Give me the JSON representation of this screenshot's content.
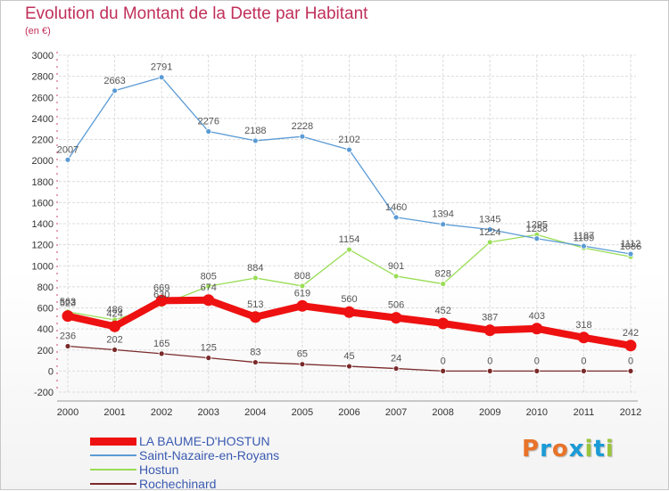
{
  "title": "Evolution du Montant de la Dette par Habitant",
  "subtitle": "(en €)",
  "brand": {
    "letters": [
      "P",
      "r",
      "o",
      "x",
      "i",
      "t",
      "i"
    ],
    "colors": [
      "#e8732a",
      "#1a9bd7",
      "#e8732a",
      "#1a9bd7",
      "#9bc43c",
      "#1a9bd7",
      "#9bc43c"
    ]
  },
  "chart_data": {
    "type": "line",
    "x": [
      "2000",
      "2001",
      "2002",
      "2003",
      "2004",
      "2005",
      "2006",
      "2007",
      "2008",
      "2009",
      "2010",
      "2011",
      "2012"
    ],
    "yticks": [
      "-200",
      "0",
      "200",
      "400",
      "600",
      "800",
      "1000",
      "1200",
      "1400",
      "1600",
      "1800",
      "2000",
      "2200",
      "2400",
      "2600",
      "2800",
      "3000"
    ],
    "ylim": [
      -200,
      3000
    ],
    "grid": true,
    "legend_placement": "bottom-left",
    "series": [
      {
        "name": "LA BAUME-D'HOSTUN",
        "color": "#ee1111",
        "values": [
          523,
          424,
          669,
          674,
          513,
          619,
          560,
          506,
          452,
          387,
          403,
          318,
          242
        ],
        "labels": [
          "523",
          "424",
          "669",
          "674",
          "513",
          "619",
          "560",
          "506",
          "452",
          "387",
          "403",
          "318",
          "242"
        ]
      },
      {
        "name": "Saint-Nazaire-en-Royans",
        "color": "#5b9bd5",
        "values": [
          2007,
          2663,
          2791,
          2276,
          2188,
          2228,
          2102,
          1460,
          1394,
          1345,
          1258,
          1187,
          1112
        ],
        "labels": [
          "2007",
          "2663",
          "2791",
          "2276",
          "2188",
          "2228",
          "2102",
          "1460",
          "1394",
          "1345",
          "1258",
          "1187",
          "1112"
        ]
      },
      {
        "name": "Hostun",
        "color": "#99dd55",
        "values": [
          563,
          486,
          630,
          805,
          884,
          808,
          1154,
          901,
          828,
          1224,
          1295,
          1169,
          1086
        ],
        "labels": [
          "563",
          "486",
          "630",
          "805",
          "884",
          "808",
          "1154",
          "901",
          "828",
          "1224",
          "1295",
          "1169",
          "1086"
        ]
      },
      {
        "name": "Rochechinard",
        "color": "#7a2a2a",
        "values": [
          236,
          202,
          165,
          125,
          83,
          65,
          45,
          24,
          0,
          0,
          0,
          0,
          0
        ],
        "labels": [
          "236",
          "202",
          "165",
          "125",
          "83",
          "65",
          "45",
          "24",
          "0",
          "0",
          "0",
          "0",
          "0"
        ]
      }
    ]
  }
}
